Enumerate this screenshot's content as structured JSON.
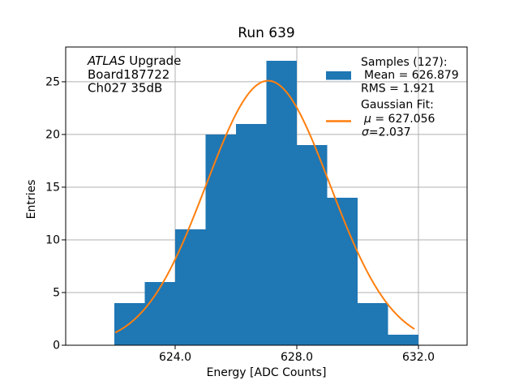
{
  "annotation": {
    "line1_italic": "ATLAS",
    "line1_rest": " Upgrade",
    "line2": "Board187722",
    "line3": "Ch027 35dB"
  },
  "legend": {
    "samples_header": "Samples (127):",
    "mean_line": "Mean = 626.879",
    "rms_line": "RMS = 1.921",
    "fit_header": "Gaussian Fit:",
    "mu_symbol": "μ",
    "mu_rest": " = 627.056",
    "sigma_symbol": "σ",
    "sigma_rest": "=2.037"
  },
  "chart_data": {
    "type": "bar",
    "subtype": "histogram-with-gaussian-fit",
    "title": "Run 639",
    "xlabel": "Energy [ADC Counts]",
    "ylabel": "Entries",
    "bin_edges": [
      622,
      623,
      624,
      625,
      626,
      627,
      628,
      629,
      630,
      631,
      632
    ],
    "counts": [
      4,
      6,
      11,
      20,
      21,
      27,
      19,
      14,
      4,
      1
    ],
    "n_samples": 127,
    "mean": 626.879,
    "rms": 1.921,
    "fit": {
      "type": "gaussian",
      "mu": 627.056,
      "sigma": 2.037,
      "amplitude": 25.1,
      "x_start": 622.05,
      "x_end": 631.85
    },
    "xlim": [
      620.4,
      633.6
    ],
    "ylim": [
      0,
      28.3
    ],
    "x_ticks": [
      {
        "value": 624.0,
        "label": "624.0"
      },
      {
        "value": 628.0,
        "label": "628.0"
      },
      {
        "value": 632.0,
        "label": "632.0"
      }
    ],
    "y_ticks": [
      {
        "value": 0,
        "label": "0"
      },
      {
        "value": 5,
        "label": "5"
      },
      {
        "value": 10,
        "label": "10"
      },
      {
        "value": 15,
        "label": "15"
      },
      {
        "value": 20,
        "label": "20"
      },
      {
        "value": 25,
        "label": "25"
      }
    ],
    "grid": true,
    "legend_position": "upper right",
    "style": {
      "bar_color": "#1f77b4",
      "fit_color": "#ff7f0e",
      "grid_color": "#b0b0b0",
      "axes_color": "#000000",
      "background": "#ffffff"
    }
  }
}
